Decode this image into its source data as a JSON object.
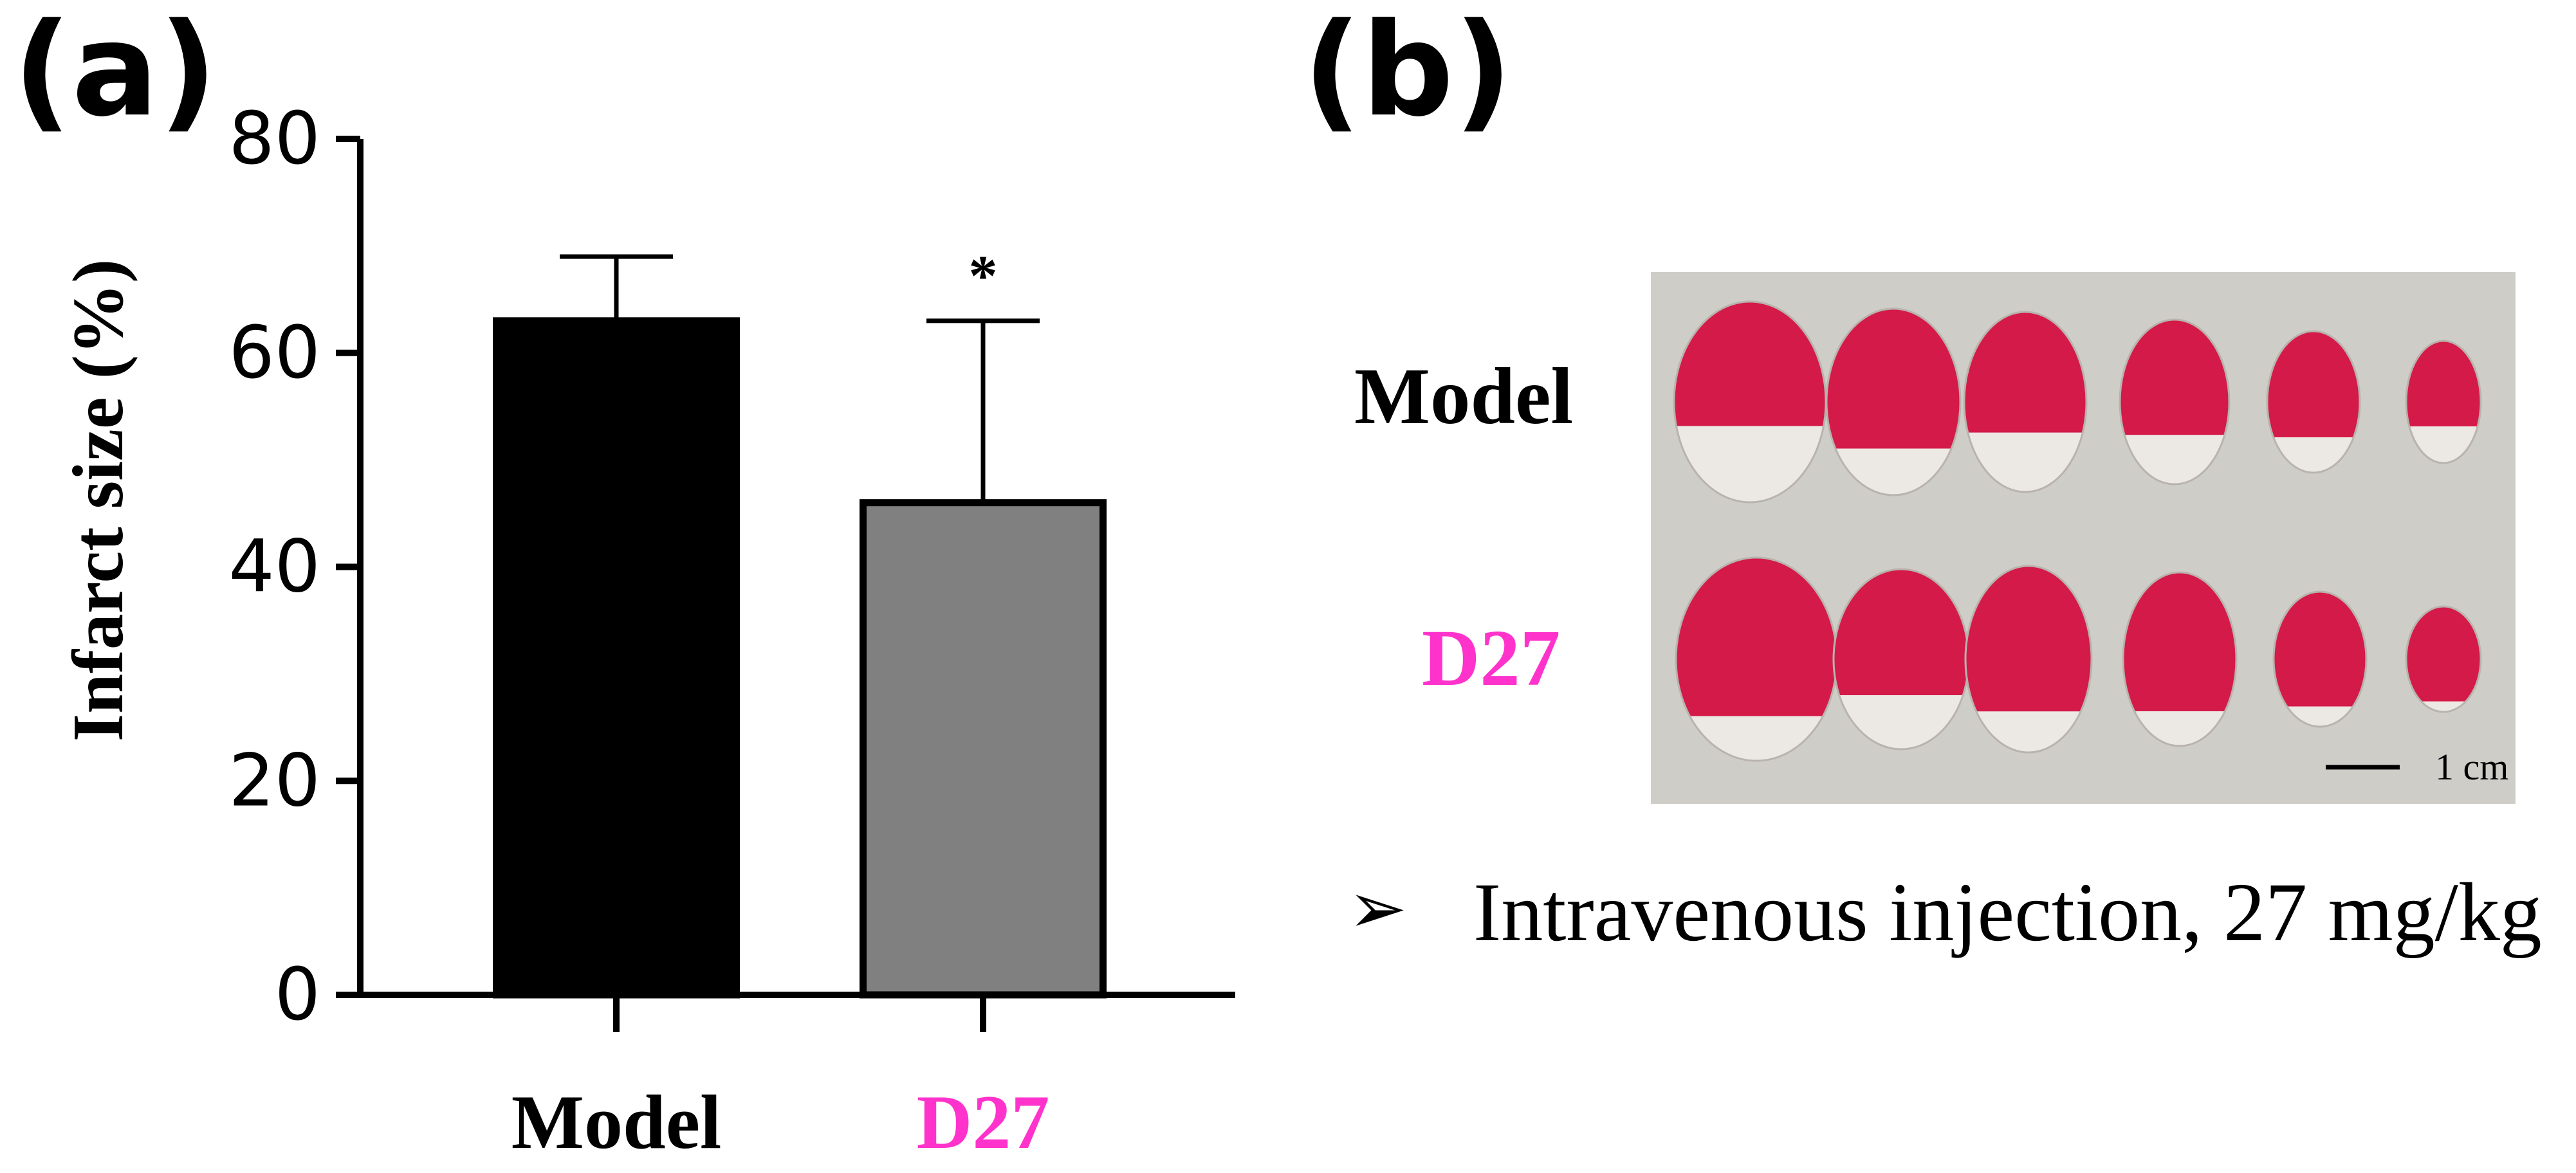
{
  "panel_a_label": "(a)",
  "panel_b_label": "(b)",
  "colors": {
    "model": "#000000",
    "d27_fill": "#808080",
    "d27_label": "#ff33cc",
    "axis": "#000000",
    "photo_bg": "#cfcdc8",
    "tissue_red": "#d41a48",
    "tissue_white": "#ece8e4"
  },
  "chart_data": {
    "type": "bar",
    "title": "",
    "xlabel": "",
    "ylabel": "Infarct size (%)",
    "ylim": [
      0,
      80
    ],
    "yticks": [
      0,
      20,
      40,
      60,
      80
    ],
    "categories": [
      "Model",
      "D27"
    ],
    "values": [
      63,
      46
    ],
    "errors": [
      6,
      17
    ],
    "significance": [
      "",
      "*"
    ]
  },
  "photo": {
    "row_labels": [
      "Model",
      "D27"
    ],
    "model_infarct_fractions": [
      0.38,
      0.25,
      0.33,
      0.3,
      0.25,
      0.3
    ],
    "d27_infarct_fractions": [
      0.22,
      0.3,
      0.22,
      0.2,
      0.15,
      0.1
    ],
    "scale_bar": "1 cm"
  },
  "note": {
    "bullet": "➢",
    "text": "Intravenous injection, 27 mg/kg"
  }
}
